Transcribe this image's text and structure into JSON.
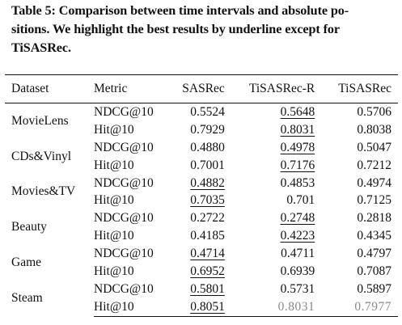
{
  "caption": {
    "line1": "Table 5: Comparison between time intervals and absolute po-",
    "line2": "sitions. We highlight the best results by underline except for",
    "line3": "TiSASRec."
  },
  "table": {
    "headers": [
      "Dataset",
      "Metric",
      "SASRec",
      "TiSASRec-R",
      "TiSASRec"
    ],
    "datasets": [
      {
        "name": "MovieLens",
        "rows": [
          {
            "metric": "NDCG@10",
            "sasrec": "0.5524",
            "tisasrec_r": "0.5648",
            "tisasrec": "0.5706",
            "best": "tisasrec_r"
          },
          {
            "metric": "Hit@10",
            "sasrec": "0.7929",
            "tisasrec_r": "0.8031",
            "tisasrec": "0.8038",
            "best": "tisasrec_r"
          }
        ]
      },
      {
        "name": "CDs&Vinyl",
        "rows": [
          {
            "metric": "NDCG@10",
            "sasrec": "0.4880",
            "tisasrec_r": "0.4978",
            "tisasrec": "0.5047",
            "best": "tisasrec_r"
          },
          {
            "metric": "Hit@10",
            "sasrec": "0.7001",
            "tisasrec_r": "0.7176",
            "tisasrec": "0.7212",
            "best": "tisasrec_r"
          }
        ]
      },
      {
        "name": "Movies&TV",
        "rows": [
          {
            "metric": "NDCG@10",
            "sasrec": "0.4882",
            "tisasrec_r": "0.4853",
            "tisasrec": "0.4974",
            "best": "sasrec"
          },
          {
            "metric": "Hit@10",
            "sasrec": "0.7035",
            "tisasrec_r": "0.701",
            "tisasrec": "0.7125",
            "best": "sasrec"
          }
        ]
      },
      {
        "name": "Beauty",
        "rows": [
          {
            "metric": "NDCG@10",
            "sasrec": "0.2722",
            "tisasrec_r": "0.2748",
            "tisasrec": "0.2818",
            "best": "tisasrec_r"
          },
          {
            "metric": "Hit@10",
            "sasrec": "0.4185",
            "tisasrec_r": "0.4223",
            "tisasrec": "0.4345",
            "best": "tisasrec_r"
          }
        ]
      },
      {
        "name": "Game",
        "rows": [
          {
            "metric": "NDCG@10",
            "sasrec": "0.4714",
            "tisasrec_r": "0.4711",
            "tisasrec": "0.4797",
            "best": "sasrec"
          },
          {
            "metric": "Hit@10",
            "sasrec": "0.6952",
            "tisasrec_r": "0.6939",
            "tisasrec": "0.7087",
            "best": "sasrec"
          }
        ]
      },
      {
        "name": "Steam",
        "rows": [
          {
            "metric": "NDCG@10",
            "sasrec": "0.5801",
            "tisasrec_r": "0.5731",
            "tisasrec": "0.5897",
            "best": "sasrec"
          },
          {
            "metric": "Hit@10",
            "sasrec": "0.8051",
            "tisasrec_r": "0.8031",
            "tisasrec": "0.7977",
            "best": "sasrec",
            "faded": [
              "tisasrec_r",
              "tisasrec"
            ]
          }
        ]
      }
    ]
  }
}
